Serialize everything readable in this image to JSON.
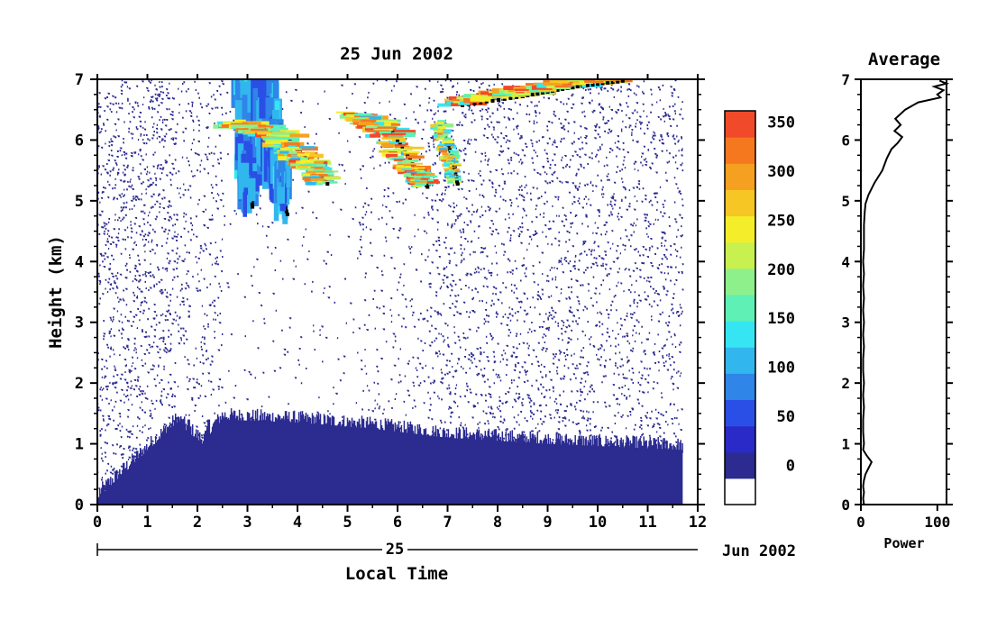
{
  "chart_data": [
    {
      "type": "heatmap",
      "title": "25 Jun 2002",
      "ylabel": "Height (km)",
      "xlabel": "Local Time",
      "xlim": [
        0,
        12
      ],
      "ylim": [
        0,
        7
      ],
      "x_ticks": [
        "0",
        "1",
        "2",
        "3",
        "4",
        "5",
        "6",
        "7",
        "8",
        "9",
        "10",
        "11",
        "12"
      ],
      "y_ticks": [
        "0",
        "1",
        "2",
        "3",
        "4",
        "5",
        "6",
        "7"
      ],
      "date_axis": {
        "day_label": "25",
        "month_label": "Jun 2002"
      },
      "data_end_time": 11.7,
      "surface_layer": {
        "description_values": [
          {
            "t": 0.0,
            "top": 0.1
          },
          {
            "t": 1.6,
            "top": 1.35
          },
          {
            "t": 2.1,
            "top": 1.0
          },
          {
            "t": 2.5,
            "top": 1.4
          },
          {
            "t": 4.0,
            "top": 1.35
          },
          {
            "t": 5.5,
            "top": 1.25
          },
          {
            "t": 7.0,
            "top": 1.1
          },
          {
            "t": 9.0,
            "top": 1.0
          },
          {
            "t": 11.7,
            "top": 0.9
          }
        ],
        "value": 20
      },
      "layers": [
        {
          "name": "",
          "points": [
            [
              2.95,
              6.9,
              8,
              150
            ],
            [
              3.0,
              6.2,
              25,
              180
            ],
            [
              3.05,
              5.6,
              35,
              120
            ],
            [
              3.1,
              5.1,
              30,
              90
            ]
          ],
          "value": 120
        },
        {
          "name": "",
          "points": [
            [
              3.2,
              6.9,
              60,
              150
            ],
            [
              3.4,
              6.2,
              35,
              200
            ],
            [
              3.6,
              5.6,
              25,
              150
            ],
            [
              3.8,
              5.0,
              20,
              100
            ]
          ],
          "value": 130
        },
        {
          "name": "",
          "points": [
            [
              3.0,
              6.25,
              80,
              12
            ],
            [
              3.8,
              6.05,
              70,
              14
            ],
            [
              4.3,
              5.6,
              60,
              12
            ],
            [
              4.6,
              5.3,
              50,
              10
            ]
          ],
          "value": 340
        },
        {
          "name": "",
          "points": [
            [
              5.3,
              6.4,
              60,
              12
            ],
            [
              5.9,
              6.15,
              70,
              14
            ],
            [
              6.4,
              5.5,
              50,
              12
            ],
            [
              6.6,
              5.25,
              40,
              10
            ]
          ],
          "value": 360
        },
        {
          "name": "",
          "points": [
            [
              6.9,
              6.25,
              30,
              12
            ],
            [
              7.1,
              5.7,
              30,
              12
            ],
            [
              7.2,
              5.3,
              25,
              10
            ]
          ],
          "value": 320
        },
        {
          "name": "",
          "points": [
            [
              7.3,
              6.6,
              60,
              12
            ],
            [
              8.5,
              6.75,
              80,
              14
            ],
            [
              9.5,
              6.9,
              80,
              14
            ],
            [
              10.5,
              7.0,
              60,
              12
            ]
          ],
          "value": 360
        }
      ],
      "colorbar": {
        "ticks": [
          "0",
          "50",
          "100",
          "150",
          "200",
          "250",
          "300",
          "350"
        ],
        "min": 0,
        "max": 375,
        "colors": [
          "#ffffff",
          "#2b2b90",
          "#2a2ac8",
          "#2a4fe6",
          "#2f85e8",
          "#32b6ee",
          "#35e6f2",
          "#5ef0b4",
          "#8ef08a",
          "#c8f04e",
          "#f4ee2a",
          "#f6c624",
          "#f5a020",
          "#f5781e",
          "#f04a2a"
        ]
      }
    },
    {
      "type": "line",
      "title": "Average",
      "xlabel": "Power",
      "xlim": [
        0,
        112
      ],
      "ylim": [
        0,
        7
      ],
      "x_ticks": [
        "0",
        "100"
      ],
      "y_ticks": [
        "0",
        "1",
        "2",
        "3",
        "4",
        "5",
        "6",
        "7"
      ],
      "series": [
        {
          "x": [
            4,
            3,
            4,
            3,
            4,
            6,
            10,
            14,
            8,
            3,
            4,
            3,
            3,
            4,
            3,
            4,
            3,
            3,
            4,
            3,
            4,
            3,
            4,
            3,
            4,
            3,
            4,
            4,
            4,
            5,
            6,
            10,
            18,
            28,
            34,
            40,
            48,
            54,
            44,
            52,
            45,
            58,
            75,
            104,
            100,
            108,
            96,
            112,
            104,
            104
          ],
          "y": [
            0,
            0.1,
            0.2,
            0.3,
            0.4,
            0.5,
            0.6,
            0.7,
            0.8,
            0.9,
            1.0,
            1.2,
            1.4,
            1.6,
            1.8,
            2.0,
            2.2,
            2.4,
            2.6,
            2.8,
            3.0,
            3.2,
            3.4,
            3.6,
            3.8,
            4.0,
            4.2,
            4.4,
            4.6,
            4.8,
            4.95,
            5.1,
            5.3,
            5.5,
            5.7,
            5.85,
            5.95,
            6.05,
            6.15,
            6.25,
            6.35,
            6.5,
            6.62,
            6.7,
            6.75,
            6.82,
            6.88,
            6.93,
            6.97,
            7.0
          ]
        }
      ]
    }
  ]
}
